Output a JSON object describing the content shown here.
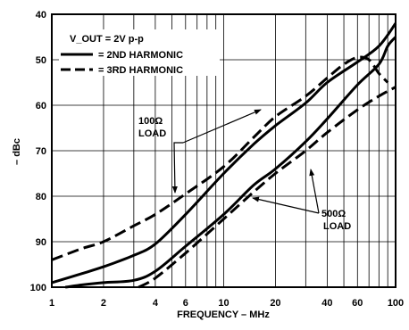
{
  "chart_data": {
    "type": "line",
    "xlabel": "FREQUENCY – MHz",
    "ylabel": "– dBc",
    "x_scale": "log",
    "xlim": [
      1,
      100
    ],
    "ylim": [
      100,
      40
    ],
    "grid": true,
    "x_ticks": [
      "1",
      "2",
      "4",
      "6",
      "10",
      "20",
      "40",
      "60",
      "100"
    ],
    "x_tick_values": [
      1,
      2,
      4,
      6,
      10,
      20,
      40,
      60,
      100
    ],
    "y_ticks": [
      "40",
      "50",
      "60",
      "70",
      "80",
      "90",
      "100"
    ],
    "y_tick_values": [
      40,
      50,
      60,
      70,
      80,
      90,
      100
    ],
    "condition": "V_OUT = 2V p-p",
    "legend": {
      "position": "top-left",
      "items": [
        {
          "label": "= 2ND HARMONIC",
          "style": "solid"
        },
        {
          "label": "= 3RD HARMONIC",
          "style": "dashed"
        }
      ]
    },
    "series": [
      {
        "style": "solid",
        "load": "100Ω",
        "x": [
          1,
          1.5,
          2,
          3,
          4,
          6,
          10,
          15,
          20,
          30,
          40,
          60,
          80,
          100
        ],
        "y": [
          99,
          97,
          95.5,
          93,
          90.5,
          84,
          75,
          68.5,
          64.5,
          59.5,
          55,
          50.5,
          47,
          42
        ]
      },
      {
        "style": "dashed",
        "load": "100Ω",
        "x": [
          1,
          1.5,
          2,
          3,
          4,
          6,
          10,
          15,
          20,
          30,
          40,
          50,
          60,
          70,
          80,
          90
        ],
        "y": [
          94,
          91.5,
          90,
          86.5,
          84,
          79.5,
          73.5,
          67,
          62.5,
          58,
          54,
          51,
          49.5,
          50,
          53,
          55
        ]
      },
      {
        "style": "solid",
        "load": "500Ω",
        "x": [
          1.2,
          1.5,
          2,
          3,
          4,
          6,
          10,
          15,
          20,
          30,
          40,
          60,
          80,
          90,
          100
        ],
        "y": [
          100,
          99.5,
          99,
          98.5,
          96.5,
          91,
          84,
          77.5,
          74,
          68,
          63,
          55.5,
          51,
          47,
          45
        ]
      },
      {
        "style": "dashed",
        "load": "500Ω",
        "x": [
          3.2,
          4,
          6,
          10,
          15,
          20,
          30,
          40,
          60,
          80,
          100
        ],
        "y": [
          100,
          98,
          92.5,
          85,
          79,
          75,
          70,
          66,
          61,
          58,
          56
        ]
      }
    ],
    "annotations": [
      {
        "line1": "100Ω",
        "line2": "LOAD"
      },
      {
        "line1": "500Ω",
        "line2": "LOAD"
      }
    ]
  }
}
